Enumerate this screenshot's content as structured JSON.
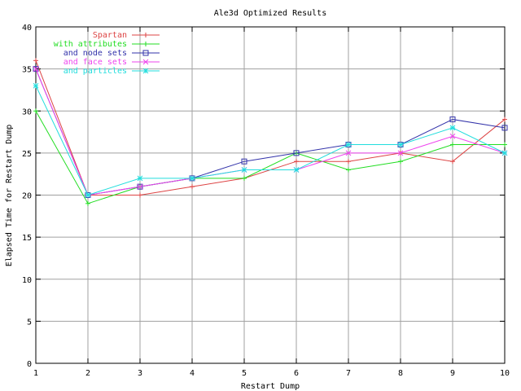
{
  "chart_data": {
    "type": "line",
    "title": "Ale3d Optimized Results",
    "xlabel": "Restart Dump",
    "ylabel": "Elapsed Time for Restart Dump",
    "x": [
      1,
      2,
      3,
      4,
      5,
      6,
      7,
      8,
      9,
      10
    ],
    "xlim": [
      1,
      10
    ],
    "ylim": [
      0,
      40
    ],
    "xticks": [
      1,
      2,
      3,
      4,
      5,
      6,
      7,
      8,
      9,
      10
    ],
    "yticks": [
      0,
      5,
      10,
      15,
      20,
      25,
      30,
      35,
      40
    ],
    "grid": true,
    "legend_position": "top-left",
    "series": [
      {
        "name": "Spartan",
        "color": "#dd4444",
        "marker": "plus",
        "values": [
          36,
          20,
          20,
          21,
          22,
          24,
          24,
          25,
          24,
          29
        ]
      },
      {
        "name": "with attributes",
        "color": "#22dd22",
        "marker": "cross",
        "values": [
          30,
          19,
          21,
          22,
          22,
          25,
          23,
          24,
          26,
          26
        ]
      },
      {
        "name": "and node sets",
        "color": "#3333aa",
        "marker": "square",
        "values": [
          35,
          20,
          21,
          22,
          24,
          25,
          26,
          26,
          29,
          28
        ]
      },
      {
        "name": "and face sets",
        "color": "#ee44ee",
        "marker": "x",
        "values": [
          35,
          20,
          21,
          22,
          23,
          23,
          25,
          25,
          27,
          25
        ]
      },
      {
        "name": "and particles",
        "color": "#22dddd",
        "marker": "star",
        "values": [
          33,
          20,
          22,
          22,
          23,
          23,
          26,
          26,
          28,
          25
        ]
      }
    ]
  }
}
